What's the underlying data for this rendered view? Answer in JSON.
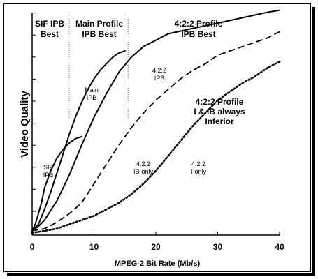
{
  "chart_data": {
    "type": "line",
    "xlabel": "MPEG-2 Bit Rate (Mb/s)",
    "ylabel": "Video Quality",
    "xlim": [
      0,
      40
    ],
    "x_ticks": [
      "0",
      "10",
      "20",
      "30",
      "40"
    ],
    "y_tick_labels_shown": false,
    "regions": [
      {
        "label_lines": [
          "SIF IPB",
          "Best"
        ],
        "x_from": 0,
        "x_to": 6
      },
      {
        "label_lines": [
          "Main Profile",
          "IPB Best"
        ],
        "x_from": 6,
        "x_to": 15.5
      },
      {
        "label_lines": [
          "4:2:2 Profile",
          "IPB Best"
        ],
        "x_from": 15.5,
        "x_to": 40
      }
    ],
    "region_dividers_x": [
      6,
      15.5
    ],
    "series": [
      {
        "label_lines": [
          "SIF",
          "IPB"
        ],
        "style": "solid",
        "x": [
          0,
          0.5,
          1,
          1.5,
          2,
          3,
          4,
          5,
          6,
          7,
          8
        ],
        "y": [
          0.02,
          0.05,
          0.1,
          0.15,
          0.22,
          0.3,
          0.36,
          0.4,
          0.43,
          0.45,
          0.46
        ]
      },
      {
        "label_lines": [
          "Main",
          "IPB"
        ],
        "style": "solid",
        "x": [
          0,
          1,
          2,
          3,
          4,
          5,
          6,
          7,
          8,
          9,
          10,
          11,
          12,
          13,
          14,
          15
        ],
        "y": [
          0.02,
          0.05,
          0.12,
          0.2,
          0.29,
          0.38,
          0.47,
          0.55,
          0.62,
          0.68,
          0.73,
          0.77,
          0.8,
          0.83,
          0.85,
          0.86
        ]
      },
      {
        "label_lines": [
          "4:2:2",
          "IPB"
        ],
        "style": "solid",
        "x": [
          0,
          1,
          2,
          4,
          6,
          8,
          10,
          12,
          14,
          16,
          18,
          20,
          22,
          26,
          30,
          34,
          38,
          40
        ],
        "y": [
          0.02,
          0.04,
          0.07,
          0.16,
          0.28,
          0.42,
          0.55,
          0.66,
          0.76,
          0.83,
          0.88,
          0.91,
          0.94,
          0.965,
          0.99,
          1.015,
          1.04,
          1.05
        ]
      },
      {
        "label_lines": [
          "4:2:2",
          "IB-only"
        ],
        "style": "dashed",
        "x": [
          0,
          2,
          4,
          6,
          8,
          10,
          12,
          14,
          16,
          18,
          20,
          22,
          24,
          26,
          28,
          30,
          32,
          34,
          36,
          38,
          40
        ],
        "y": [
          0.02,
          0.03,
          0.06,
          0.1,
          0.15,
          0.24,
          0.33,
          0.42,
          0.5,
          0.57,
          0.63,
          0.68,
          0.73,
          0.77,
          0.8,
          0.84,
          0.86,
          0.88,
          0.9,
          0.92,
          0.95
        ]
      },
      {
        "label_lines": [
          "4:2:2",
          "I-only"
        ],
        "style": "dotted",
        "x": [
          0,
          2,
          4,
          6,
          8,
          10,
          12,
          14,
          16,
          18,
          20,
          22,
          24,
          26,
          28,
          30,
          32,
          34,
          36,
          38,
          40
        ],
        "y": [
          0.01,
          0.02,
          0.03,
          0.05,
          0.07,
          0.09,
          0.12,
          0.15,
          0.19,
          0.24,
          0.3,
          0.37,
          0.44,
          0.51,
          0.57,
          0.63,
          0.67,
          0.71,
          0.74,
          0.78,
          0.81
        ]
      }
    ],
    "annotations": [
      {
        "text_lines": [
          "4:2:2 Profile",
          "I & IB always",
          "Inferior"
        ]
      }
    ]
  }
}
